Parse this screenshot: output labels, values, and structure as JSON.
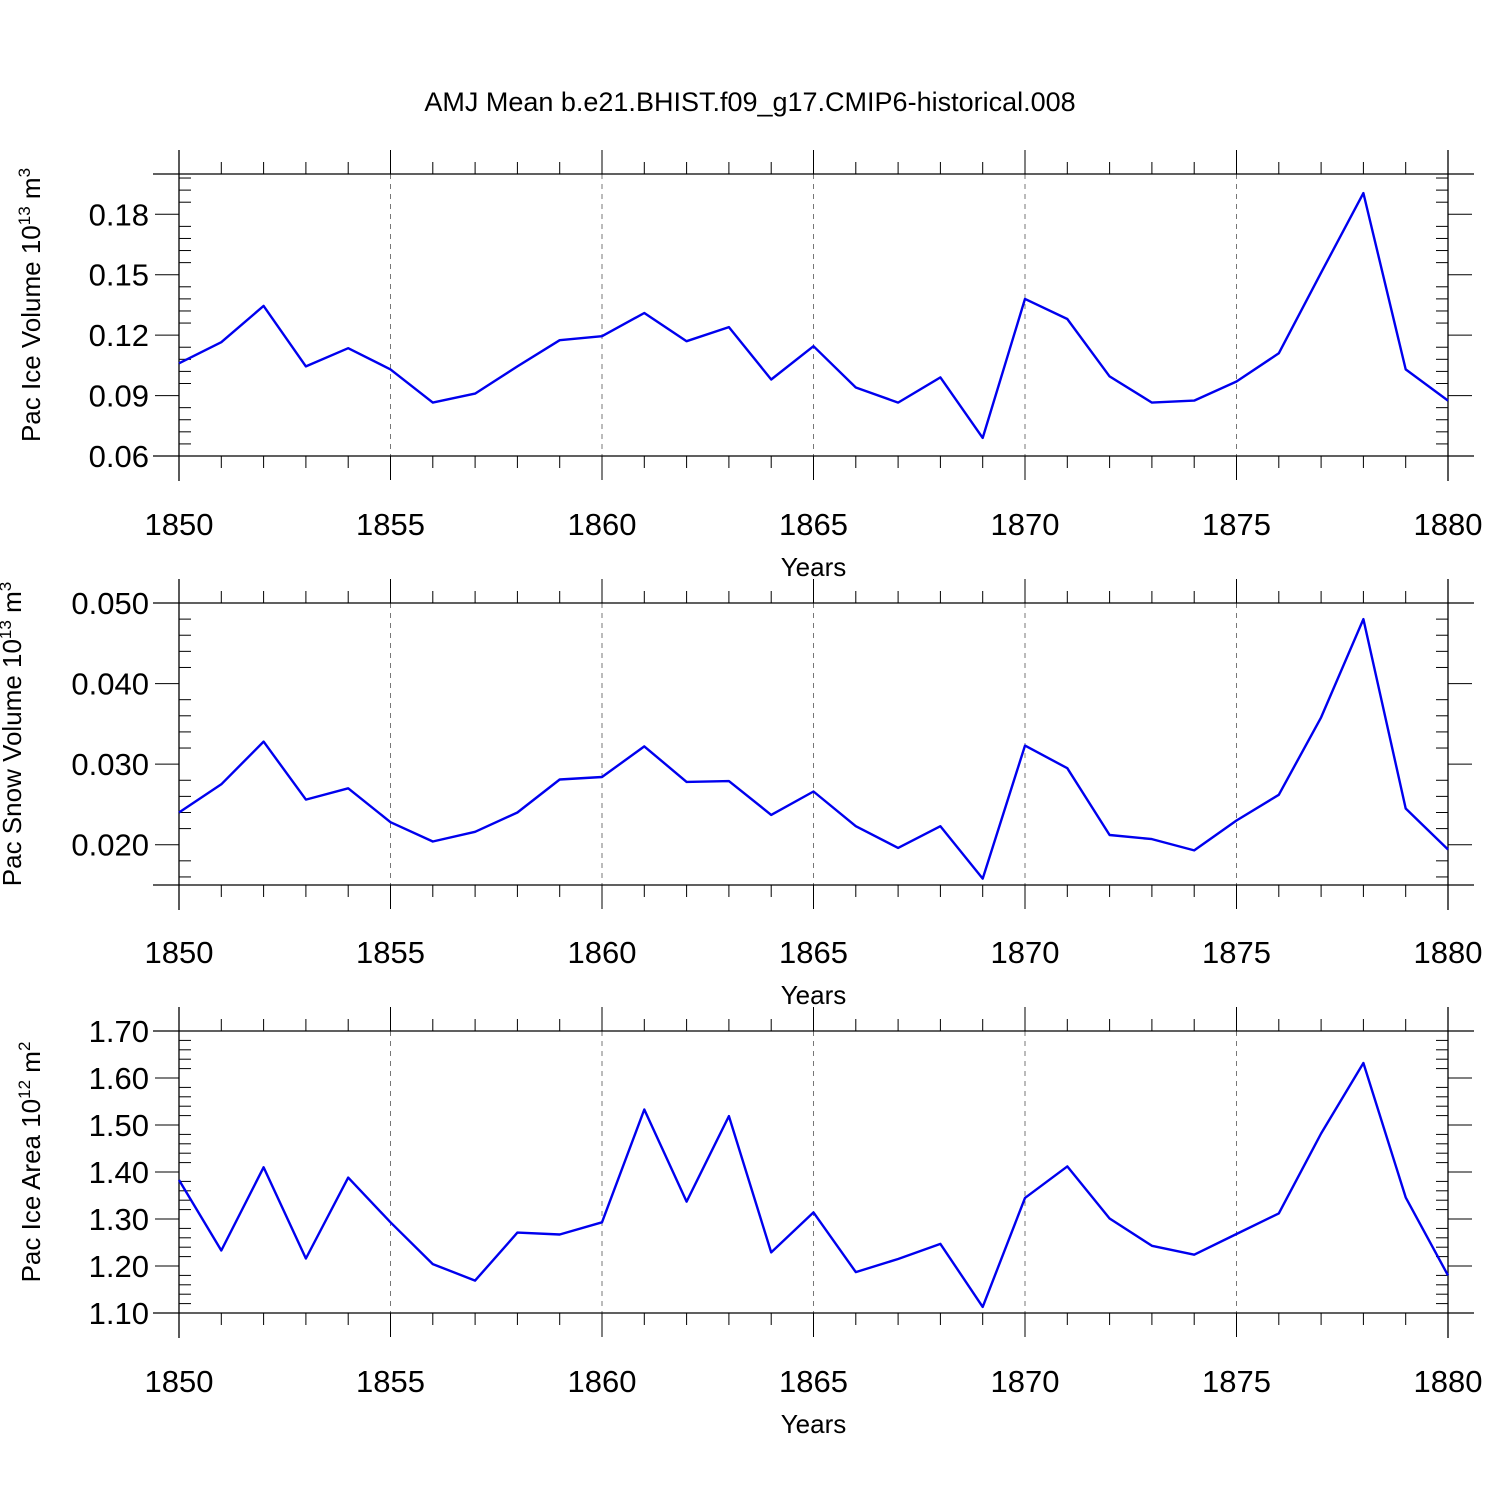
{
  "title": "AMJ Mean b.e21.BHIST.f09_g17.CMIP6-historical.008",
  "line_color": "#0000ee",
  "chart_data": [
    {
      "type": "line",
      "xlabel": "Years",
      "ylabel_main": "Pac Ice Volume 10",
      "ylabel_exp": "13",
      "ylabel_unit": "m",
      "ylabel_unit_exp": "3",
      "xlim": [
        1850,
        1880
      ],
      "ylim": [
        0.06,
        0.2
      ],
      "yticks": [
        0.06,
        0.09,
        0.12,
        0.15,
        0.18
      ],
      "ytick_labels": [
        "0.06",
        "0.09",
        "0.12",
        "0.15",
        "0.18"
      ],
      "xticks": [
        1850,
        1855,
        1860,
        1865,
        1870,
        1875,
        1880
      ],
      "xtick_labels": [
        "1850",
        "1855",
        "1860",
        "1865",
        "1870",
        "1875",
        "1880"
      ],
      "x": [
        1850,
        1851,
        1852,
        1853,
        1854,
        1855,
        1856,
        1857,
        1858,
        1859,
        1860,
        1861,
        1862,
        1863,
        1864,
        1865,
        1866,
        1867,
        1868,
        1869,
        1870,
        1871,
        1872,
        1873,
        1874,
        1875,
        1876,
        1877,
        1878,
        1879,
        1880
      ],
      "values": [
        0.106,
        0.1165,
        0.1345,
        0.1045,
        0.1135,
        0.103,
        0.0865,
        0.091,
        0.1045,
        0.1175,
        0.1195,
        0.131,
        0.117,
        0.124,
        0.098,
        0.1145,
        0.094,
        0.0865,
        0.099,
        0.069,
        0.138,
        0.128,
        0.0995,
        0.0865,
        0.0875,
        0.097,
        0.111,
        0.151,
        0.1905,
        0.103,
        0.0875
      ]
    },
    {
      "type": "line",
      "xlabel": "Years",
      "ylabel_main": "Pac Snow Volume 10",
      "ylabel_exp": "13",
      "ylabel_unit": "m",
      "ylabel_unit_exp": "3",
      "xlim": [
        1850,
        1880
      ],
      "ylim": [
        0.015,
        0.05
      ],
      "yticks": [
        0.02,
        0.03,
        0.04,
        0.05
      ],
      "ytick_labels": [
        "0.020",
        "0.030",
        "0.040",
        "0.050"
      ],
      "xticks": [
        1850,
        1855,
        1860,
        1865,
        1870,
        1875,
        1880
      ],
      "xtick_labels": [
        "1850",
        "1855",
        "1860",
        "1865",
        "1870",
        "1875",
        "1880"
      ],
      "x": [
        1850,
        1851,
        1852,
        1853,
        1854,
        1855,
        1856,
        1857,
        1858,
        1859,
        1860,
        1861,
        1862,
        1863,
        1864,
        1865,
        1866,
        1867,
        1868,
        1869,
        1870,
        1871,
        1872,
        1873,
        1874,
        1875,
        1876,
        1877,
        1878,
        1879,
        1880
      ],
      "values": [
        0.024,
        0.0275,
        0.0328,
        0.0256,
        0.027,
        0.0228,
        0.0204,
        0.0216,
        0.024,
        0.0281,
        0.0284,
        0.0322,
        0.0278,
        0.0279,
        0.0237,
        0.0266,
        0.0223,
        0.0196,
        0.0223,
        0.0158,
        0.0323,
        0.0295,
        0.0212,
        0.0207,
        0.0193,
        0.023,
        0.0262,
        0.0358,
        0.048,
        0.0245,
        0.0194
      ]
    },
    {
      "type": "line",
      "xlabel": "Years",
      "ylabel_main": "Pac Ice Area 10",
      "ylabel_exp": "12",
      "ylabel_unit": "m",
      "ylabel_unit_exp": "2",
      "xlim": [
        1850,
        1880
      ],
      "ylim": [
        1.1,
        1.7
      ],
      "yticks": [
        1.1,
        1.2,
        1.3,
        1.4,
        1.5,
        1.6,
        1.7
      ],
      "ytick_labels": [
        "1.10",
        "1.20",
        "1.30",
        "1.40",
        "1.50",
        "1.60",
        "1.70"
      ],
      "xticks": [
        1850,
        1855,
        1860,
        1865,
        1870,
        1875,
        1880
      ],
      "xtick_labels": [
        "1850",
        "1855",
        "1860",
        "1865",
        "1870",
        "1875",
        "1880"
      ],
      "x": [
        1850,
        1851,
        1852,
        1853,
        1854,
        1855,
        1856,
        1857,
        1858,
        1859,
        1860,
        1861,
        1862,
        1863,
        1864,
        1865,
        1866,
        1867,
        1868,
        1869,
        1870,
        1871,
        1872,
        1873,
        1874,
        1875,
        1876,
        1877,
        1878,
        1879,
        1880
      ],
      "values": [
        1.383,
        1.233,
        1.41,
        1.216,
        1.388,
        1.293,
        1.204,
        1.169,
        1.271,
        1.267,
        1.293,
        1.533,
        1.337,
        1.519,
        1.229,
        1.314,
        1.187,
        1.215,
        1.247,
        1.113,
        1.345,
        1.412,
        1.301,
        1.243,
        1.224,
        1.268,
        1.312,
        1.482,
        1.632,
        1.346,
        1.18
      ]
    }
  ]
}
